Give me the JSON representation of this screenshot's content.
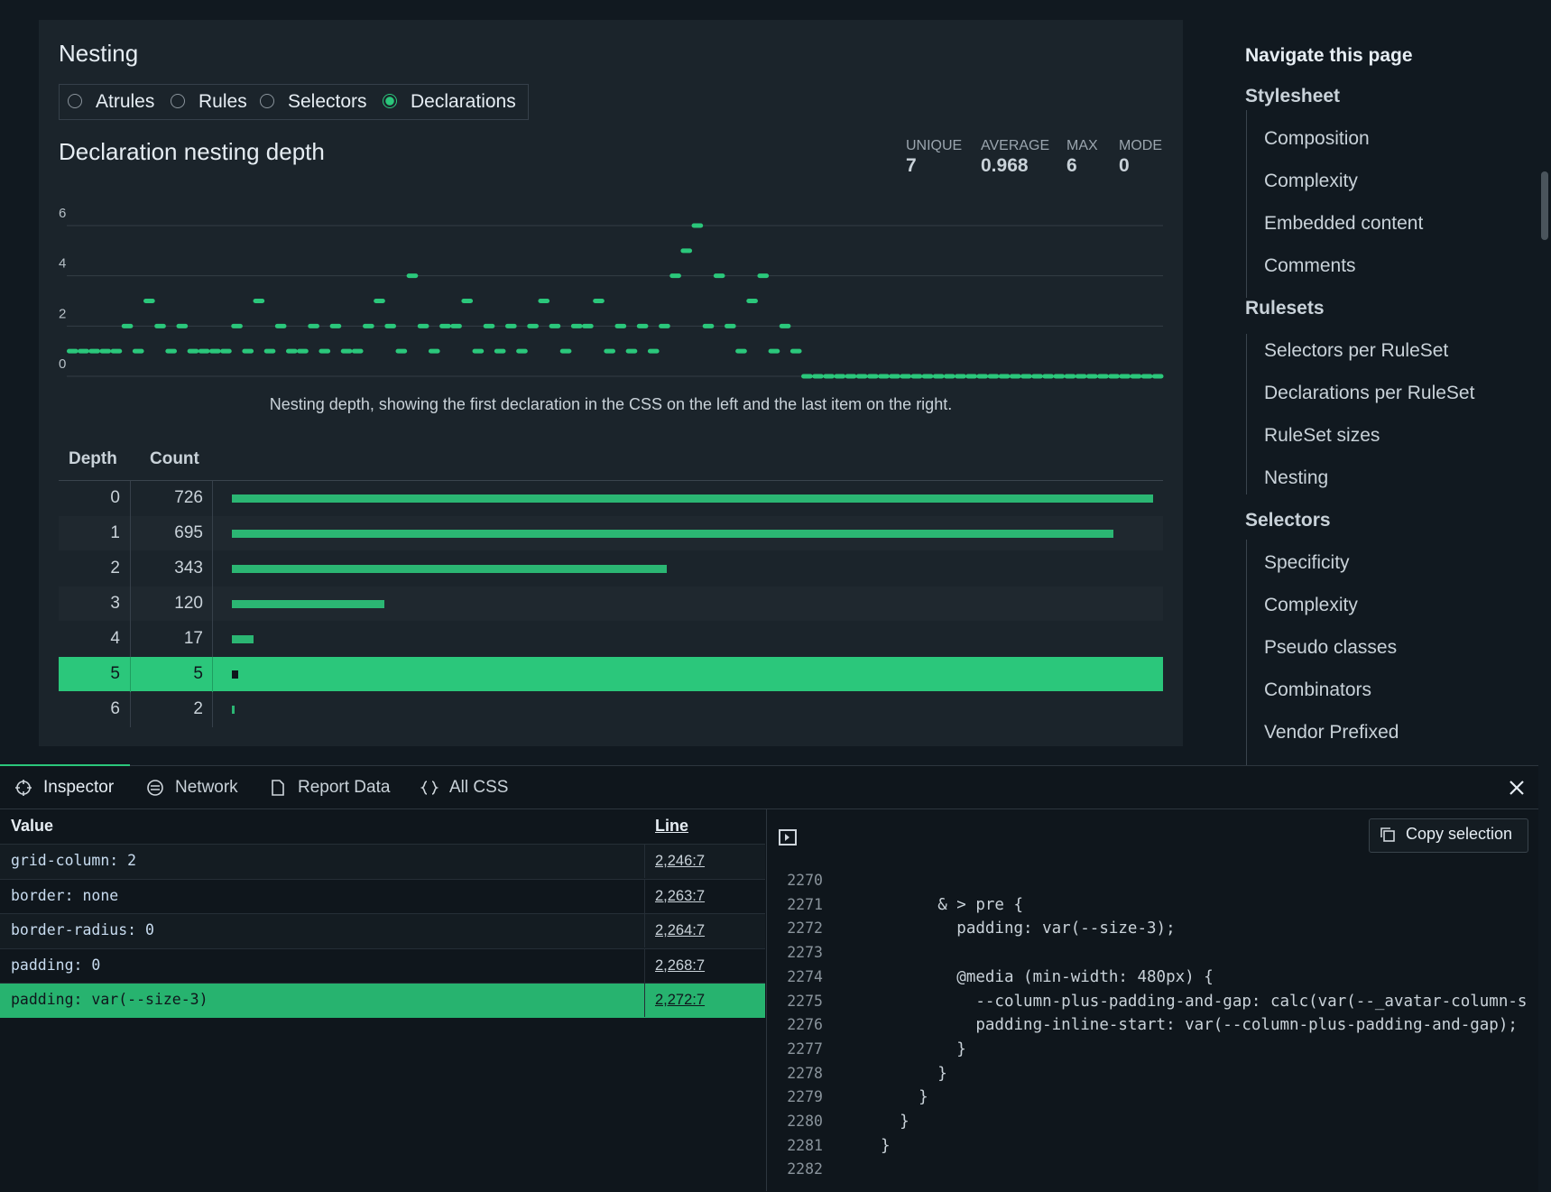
{
  "nesting": {
    "title": "Nesting",
    "options": [
      "Atrules",
      "Rules",
      "Selectors",
      "Declarations"
    ],
    "selected_index": 3,
    "chart_title": "Declaration nesting depth",
    "stats": [
      {
        "label": "UNIQUE",
        "value": 7
      },
      {
        "label": "AVERAGE",
        "value": 0.968
      },
      {
        "label": "MAX",
        "value": 6
      },
      {
        "label": "MODE",
        "value": 0
      }
    ],
    "chart_data": {
      "type": "strip",
      "values": [
        1,
        1,
        1,
        1,
        1,
        2,
        1,
        3,
        2,
        1,
        2,
        1,
        1,
        1,
        1,
        2,
        1,
        3,
        1,
        2,
        1,
        1,
        2,
        1,
        2,
        1,
        1,
        2,
        3,
        2,
        1,
        4,
        2,
        1,
        2,
        2,
        3,
        1,
        2,
        1,
        2,
        1,
        2,
        3,
        2,
        1,
        2,
        2,
        3,
        1,
        2,
        1,
        2,
        1,
        2,
        4,
        5,
        6,
        2,
        4,
        2,
        1,
        3,
        4,
        1,
        2,
        1,
        0,
        0,
        0,
        0,
        0,
        0,
        0,
        0,
        0,
        0,
        0,
        0,
        0,
        0,
        0,
        0,
        0,
        0,
        0,
        0,
        0,
        0,
        0,
        0,
        0,
        0,
        0,
        0,
        0,
        0,
        0,
        0,
        0
      ],
      "color": "#2bc77b",
      "ylim": [
        0,
        6
      ],
      "yticks": [
        0,
        2,
        4,
        6
      ],
      "grid": true,
      "caption": "Nesting depth, showing the first declaration in the CSS on the left and the last item on the right."
    },
    "table": {
      "headers": [
        "Depth",
        "Count"
      ],
      "rows": [
        [
          0,
          726
        ],
        [
          1,
          695
        ],
        [
          2,
          343
        ],
        [
          3,
          120
        ],
        [
          4,
          17
        ],
        [
          5,
          5
        ],
        [
          6,
          2
        ]
      ],
      "highlight_index": 5
    }
  },
  "nav": {
    "title": "Navigate this page",
    "groups": [
      {
        "heading": "Stylesheet",
        "items": [
          "Composition",
          "Complexity",
          "Embedded content",
          "Comments"
        ]
      },
      {
        "heading": "Rulesets",
        "items": [
          "Selectors per RuleSet",
          "Declarations per RuleSet",
          "RuleSet sizes",
          "Nesting"
        ]
      },
      {
        "heading": "Selectors",
        "items": [
          "Specificity",
          "Complexity",
          "Pseudo classes",
          "Combinators",
          "Vendor Prefixed"
        ]
      }
    ]
  },
  "devtools": {
    "tabs": [
      "Inspector",
      "Network",
      "Report Data",
      "All CSS"
    ],
    "active_tab": 0,
    "table": {
      "headers": [
        "Value",
        "Line"
      ],
      "rows": [
        [
          "grid-column: 2",
          "2,246:7"
        ],
        [
          "border: none",
          "2,263:7"
        ],
        [
          "border-radius: 0",
          "2,264:7"
        ],
        [
          "padding: 0",
          "2,268:7"
        ],
        [
          "padding: var(--size-3)",
          "2,272:7"
        ]
      ],
      "highlight_index": 4
    },
    "copy_button": "Copy selection",
    "code": {
      "line_numbers": [
        2270,
        2271,
        2272,
        2273,
        2274,
        2275,
        2276,
        2277,
        2278,
        2279,
        2280,
        2281,
        2282
      ],
      "lines": [
        "",
        "      & > pre {",
        "        padding: var(--size-3);",
        "",
        "        @media (min-width: 480px) {",
        "          --column-plus-padding-and-gap: calc(var(--_avatar-column-s",
        "          padding-inline-start: var(--column-plus-padding-and-gap);",
        "        }",
        "      }",
        "    }",
        "  }",
        "}",
        ""
      ]
    }
  }
}
